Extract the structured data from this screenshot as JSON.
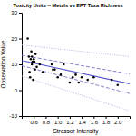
{
  "chart_data": {
    "type": "scatter",
    "title": "Toxicity Units -- Metals vs EPT Taxa Richness",
    "xlabel": "Stressor Intensity",
    "ylabel": "Observation Value",
    "xlim": [
      0.4,
      2.2
    ],
    "ylim": [
      -10,
      30
    ],
    "xticks": [
      0.6,
      0.8,
      {
        "value": 1.0,
        "label": "1.0"
      },
      1.2,
      1.4,
      1.6,
      1.8,
      {
        "value": 2.0,
        "label": "2.0"
      }
    ],
    "yticks": [
      -10,
      0,
      10,
      20,
      30
    ],
    "grid": false,
    "series": [
      {
        "type": "scatter",
        "color": "black",
        "x": [
          0.5,
          0.52,
          0.53,
          0.54,
          0.55,
          0.56,
          0.57,
          0.57,
          0.58,
          0.59,
          0.6,
          0.61,
          0.62,
          0.63,
          0.65,
          0.7,
          0.75,
          0.9,
          0.92,
          0.95,
          1.0,
          1.05,
          1.1,
          1.2,
          1.25,
          1.3,
          1.35,
          1.4,
          1.5,
          1.6,
          1.9,
          2.0
        ],
        "values": [
          20,
          13,
          7,
          5,
          12,
          15,
          13,
          10,
          11,
          4,
          12,
          11,
          8,
          14,
          9,
          10,
          7,
          10,
          8,
          8,
          5,
          6,
          10,
          3,
          5,
          6,
          3,
          5,
          4,
          5,
          4,
          2
        ]
      },
      {
        "type": "line",
        "color": "#5555cc",
        "line_style": "solid",
        "x": [
          0.4,
          2.2
        ],
        "values": [
          11.5,
          2.5
        ]
      },
      {
        "type": "line",
        "color": "#7777cc",
        "line_style": "dashed",
        "x": [
          0.4,
          2.2
        ],
        "values": [
          13.5,
          6.3
        ]
      },
      {
        "type": "line",
        "color": "#7777cc",
        "line_style": "dashed",
        "x": [
          0.4,
          2.2
        ],
        "values": [
          9.5,
          -1.3
        ]
      },
      {
        "type": "line",
        "color": "#aaaadd",
        "line_style": "dotted",
        "x": [
          0.4,
          2.2
        ],
        "values": [
          17.5,
          13
        ]
      },
      {
        "type": "line",
        "color": "#aaaadd",
        "line_style": "dotted",
        "x": [
          0.4,
          2.2
        ],
        "values": [
          5.5,
          -8
        ]
      }
    ]
  }
}
